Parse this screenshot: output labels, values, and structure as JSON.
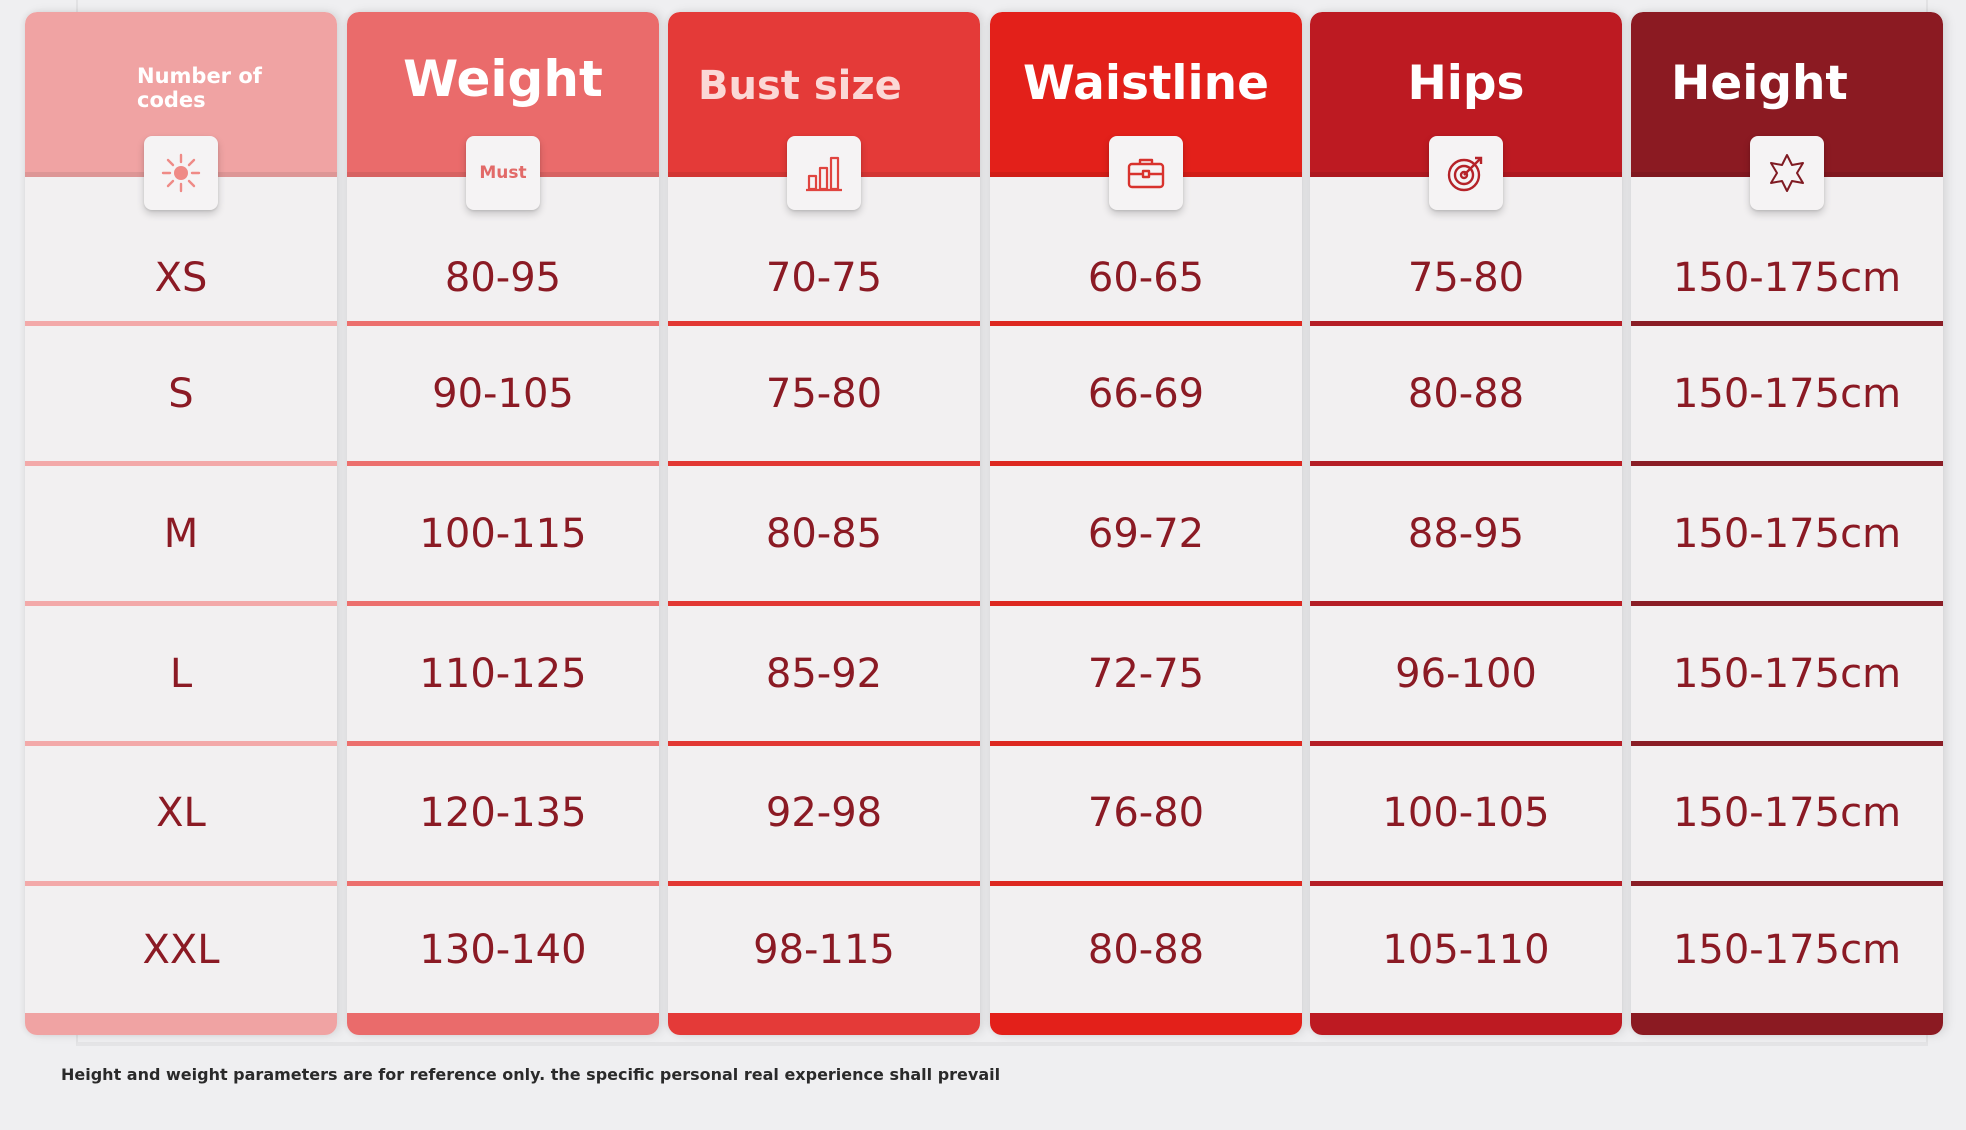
{
  "columns": [
    {
      "title": "Number of codes",
      "icon": "sun-icon",
      "color": "#f0a3a3",
      "values": [
        "XS",
        "S",
        "M",
        "L",
        "XL",
        "XXL"
      ]
    },
    {
      "title": "Weight",
      "icon": "must-icon",
      "icon_label": "Must",
      "color": "#ea6b6b",
      "values": [
        "80-95",
        "90-105",
        "100-115",
        "110-125",
        "120-135",
        "130-140"
      ]
    },
    {
      "title": "Bust size",
      "icon": "bar-chart-icon",
      "color": "#e43a38",
      "values": [
        "70-75",
        "75-80",
        "80-85",
        "85-92",
        "92-98",
        "98-115"
      ]
    },
    {
      "title": "Waistline",
      "icon": "briefcase-icon",
      "color": "#e3201a",
      "values": [
        "60-65",
        "66-69",
        "69-72",
        "72-75",
        "76-80",
        "80-88"
      ]
    },
    {
      "title": "Hips",
      "icon": "target-icon",
      "color": "#bd1a22",
      "values": [
        "75-80",
        "80-88",
        "88-95",
        "96-100",
        "100-105",
        "105-110"
      ]
    },
    {
      "title": "Height",
      "icon": "star-badge-icon",
      "color": "#8b1a22",
      "values": [
        "150-175cm",
        "150-175cm",
        "150-175cm",
        "150-175cm",
        "150-175cm",
        "150-175cm"
      ]
    }
  ],
  "footnote": "Height and weight parameters are for reference only. the specific personal real experience shall prevail",
  "text_color": "#8b1a24"
}
